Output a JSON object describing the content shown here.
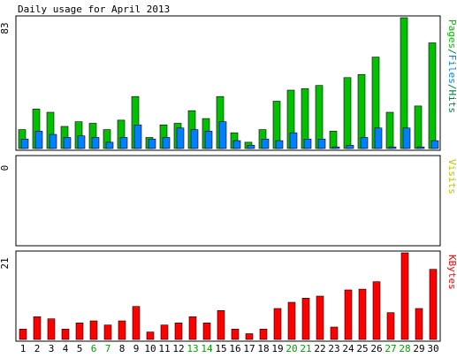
{
  "chart_data": {
    "type": "bar",
    "title": "Daily usage for April 2013",
    "categories": [
      "1",
      "2",
      "3",
      "4",
      "5",
      "6",
      "7",
      "8",
      "9",
      "10",
      "11",
      "12",
      "13",
      "14",
      "15",
      "16",
      "17",
      "18",
      "19",
      "20",
      "21",
      "22",
      "23",
      "24",
      "25",
      "26",
      "27",
      "28",
      "29",
      "30"
    ],
    "weekend_days": [
      "6",
      "7",
      "13",
      "14",
      "20",
      "21",
      "27",
      "28"
    ],
    "colors": {
      "pages": "#00c000",
      "files": "#0080ff",
      "hits": "#00c000",
      "visits": "#ffff00",
      "kbytes": "#ff0000",
      "weekday_label": "#000000",
      "weekend_label": "#00a000",
      "axis_label_pages": "#00c000",
      "axis_label_files": "#0080ff",
      "axis_label_hits": "#008040",
      "axis_label_visits": "#c0c000",
      "axis_label_kbytes": "#ff0000"
    },
    "panels": [
      {
        "id": "hits-panel",
        "ymax_label": "83",
        "ylim": [
          0,
          83
        ],
        "axis_label_parts": [
          {
            "text": "Pages",
            "color_key": "axis_label_pages"
          },
          {
            "text": "/",
            "color_key": "axis_label_hits"
          },
          {
            "text": "Files",
            "color_key": "axis_label_files"
          },
          {
            "text": "/",
            "color_key": "axis_label_hits"
          },
          {
            "text": "Hits",
            "color_key": "axis_label_hits"
          }
        ],
        "series": [
          {
            "key": "hits",
            "color_key": "hits",
            "values": [
              12,
              25,
              23,
              14,
              17,
              16,
              12,
              18,
              33,
              7,
              15,
              16,
              24,
              19,
              33,
              10,
              4,
              12,
              30,
              37,
              38,
              40,
              11,
              45,
              47,
              58,
              23,
              83,
              27,
              67
            ]
          },
          {
            "key": "files",
            "color_key": "files",
            "values": [
              6,
              11,
              9,
              7,
              8,
              7,
              4,
              7,
              15,
              6,
              7,
              13,
              12,
              11,
              17,
              5,
              2,
              6,
              5,
              10,
              6,
              6,
              1,
              2,
              7,
              13,
              1,
              13,
              1,
              5
            ]
          }
        ]
      },
      {
        "id": "visits-panel",
        "ymax_label": "0",
        "ylim": [
          0,
          1
        ],
        "axis_label_parts": [
          {
            "text": "Visits",
            "color_key": "axis_label_visits"
          }
        ],
        "series": [
          {
            "key": "visits",
            "color_key": "visits",
            "values": [
              0,
              0,
              0,
              0,
              0,
              0,
              0,
              0,
              0,
              0,
              0,
              0,
              0,
              0,
              0,
              0,
              0,
              0,
              0,
              0,
              0,
              0,
              0,
              0,
              0,
              0,
              0,
              0,
              0,
              0
            ]
          }
        ]
      },
      {
        "id": "kbytes-panel",
        "ymax_label": "21",
        "ylim": [
          0,
          21
        ],
        "axis_label_parts": [
          {
            "text": "KBytes",
            "color_key": "axis_label_kbytes"
          }
        ],
        "series": [
          {
            "key": "kbytes",
            "color_key": "kbytes",
            "values": [
              2.5,
              5.5,
              5,
              2.5,
              4,
              4.5,
              3.5,
              4.5,
              8,
              1.8,
              3.5,
              4,
              5.5,
              4,
              7,
              2.5,
              1.4,
              2.5,
              7.5,
              9,
              10,
              10.5,
              3,
              12,
              12.2,
              14,
              6.5,
              21,
              7.5,
              17
            ]
          }
        ]
      }
    ]
  }
}
